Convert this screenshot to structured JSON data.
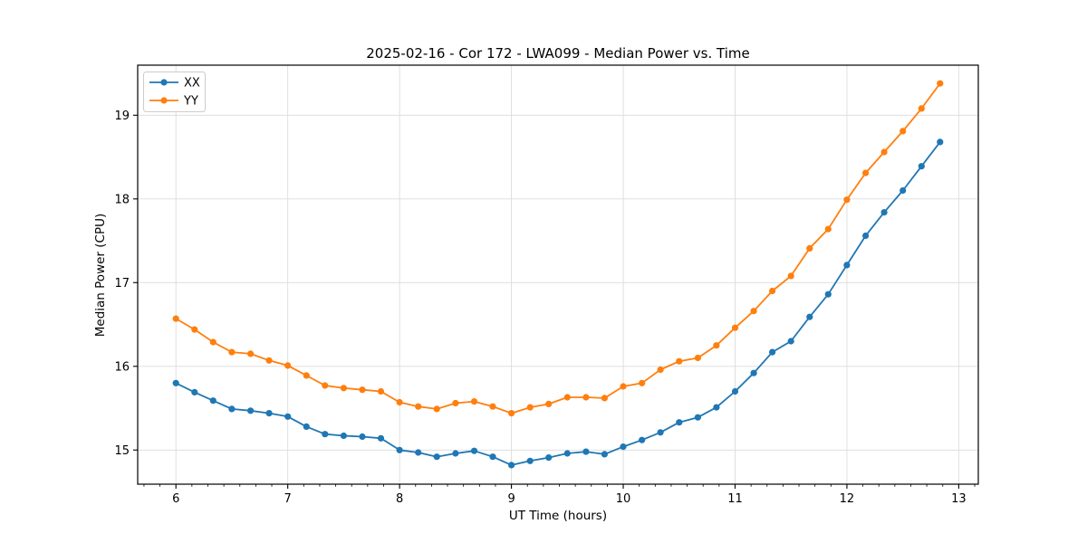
{
  "chart_data": {
    "type": "line",
    "title": "2025-02-16 - Cor 172 - LWA099 - Median Power vs. Time",
    "xlabel": "UT Time (hours)",
    "ylabel": "Median Power (CPU)",
    "xlim": [
      5.658,
      13.175
    ],
    "ylim": [
      14.592,
      19.598
    ],
    "xticks": [
      6,
      7,
      8,
      9,
      10,
      11,
      12,
      13
    ],
    "yticks": [
      15,
      16,
      17,
      18,
      19
    ],
    "grid": true,
    "grid_color": "#dcdcdc",
    "axis_color": "#000000",
    "background_color": "#ffffff",
    "legend_position": "upper left",
    "x": [
      6.0,
      6.167,
      6.333,
      6.5,
      6.667,
      6.833,
      7.0,
      7.167,
      7.333,
      7.5,
      7.667,
      7.833,
      8.0,
      8.167,
      8.333,
      8.5,
      8.667,
      8.833,
      9.0,
      9.167,
      9.333,
      9.5,
      9.667,
      9.833,
      10.0,
      10.167,
      10.333,
      10.5,
      10.667,
      10.833,
      11.0,
      11.167,
      11.333,
      11.5,
      11.667,
      11.833,
      12.0,
      12.167,
      12.333,
      12.5,
      12.667,
      12.833
    ],
    "series": [
      {
        "name": "XX",
        "color": "#1f77b4",
        "values": [
          15.8,
          15.69,
          15.59,
          15.49,
          15.47,
          15.44,
          15.4,
          15.28,
          15.19,
          15.17,
          15.16,
          15.14,
          15.0,
          14.97,
          14.92,
          14.96,
          14.99,
          14.92,
          14.82,
          14.87,
          14.91,
          14.96,
          14.98,
          14.95,
          15.04,
          15.12,
          15.21,
          15.33,
          15.39,
          15.51,
          15.7,
          15.92,
          16.17,
          16.3,
          16.59,
          16.86,
          17.21,
          17.56,
          17.84,
          18.1,
          18.39,
          18.68
        ]
      },
      {
        "name": "YY",
        "color": "#ff7f0e",
        "values": [
          16.57,
          16.44,
          16.29,
          16.17,
          16.15,
          16.07,
          16.01,
          15.89,
          15.77,
          15.74,
          15.72,
          15.7,
          15.57,
          15.52,
          15.49,
          15.56,
          15.58,
          15.52,
          15.44,
          15.51,
          15.55,
          15.63,
          15.63,
          15.62,
          15.76,
          15.8,
          15.96,
          16.06,
          16.1,
          16.25,
          16.46,
          16.66,
          16.9,
          17.08,
          17.41,
          17.64,
          17.99,
          18.31,
          18.56,
          18.81,
          19.08,
          19.38
        ]
      }
    ]
  }
}
